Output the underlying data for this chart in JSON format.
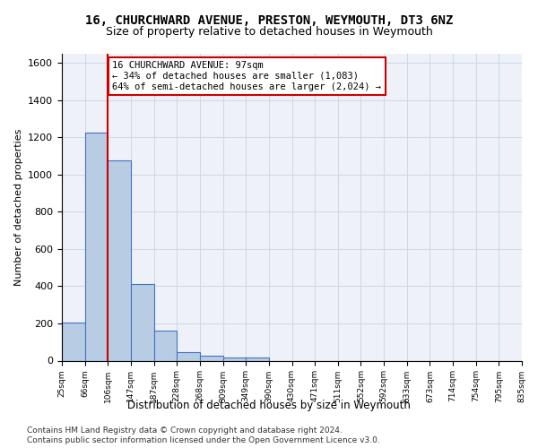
{
  "title": "16, CHURCHWARD AVENUE, PRESTON, WEYMOUTH, DT3 6NZ",
  "subtitle": "Size of property relative to detached houses in Weymouth",
  "xlabel": "Distribution of detached houses by size in Weymouth",
  "ylabel": "Number of detached properties",
  "bar_values": [
    205,
    1225,
    1075,
    410,
    160,
    45,
    25,
    15,
    15,
    0,
    0,
    0,
    0,
    0,
    0,
    0,
    0,
    0,
    0,
    0
  ],
  "bin_labels": [
    "25sqm",
    "66sqm",
    "106sqm",
    "147sqm",
    "187sqm",
    "228sqm",
    "268sqm",
    "309sqm",
    "349sqm",
    "390sqm",
    "430sqm",
    "471sqm",
    "511sqm",
    "552sqm",
    "592sqm",
    "633sqm",
    "673sqm",
    "714sqm",
    "754sqm",
    "795sqm",
    "835sqm"
  ],
  "bar_color": "#b8cce4",
  "bar_edge_color": "#4472c4",
  "grid_color": "#d0d8e8",
  "background_color": "#eef2f8",
  "property_line_x": 2,
  "property_line_color": "#cc0000",
  "annotation_text": "16 CHURCHWARD AVENUE: 97sqm\n← 34% of detached houses are smaller (1,083)\n64% of semi-detached houses are larger (2,024) →",
  "annotation_box_color": "#cc0000",
  "ylim": [
    0,
    1650
  ],
  "yticks": [
    0,
    200,
    400,
    600,
    800,
    1000,
    1200,
    1400,
    1600
  ],
  "footer_line1": "Contains HM Land Registry data © Crown copyright and database right 2024.",
  "footer_line2": "Contains public sector information licensed under the Open Government Licence v3.0."
}
